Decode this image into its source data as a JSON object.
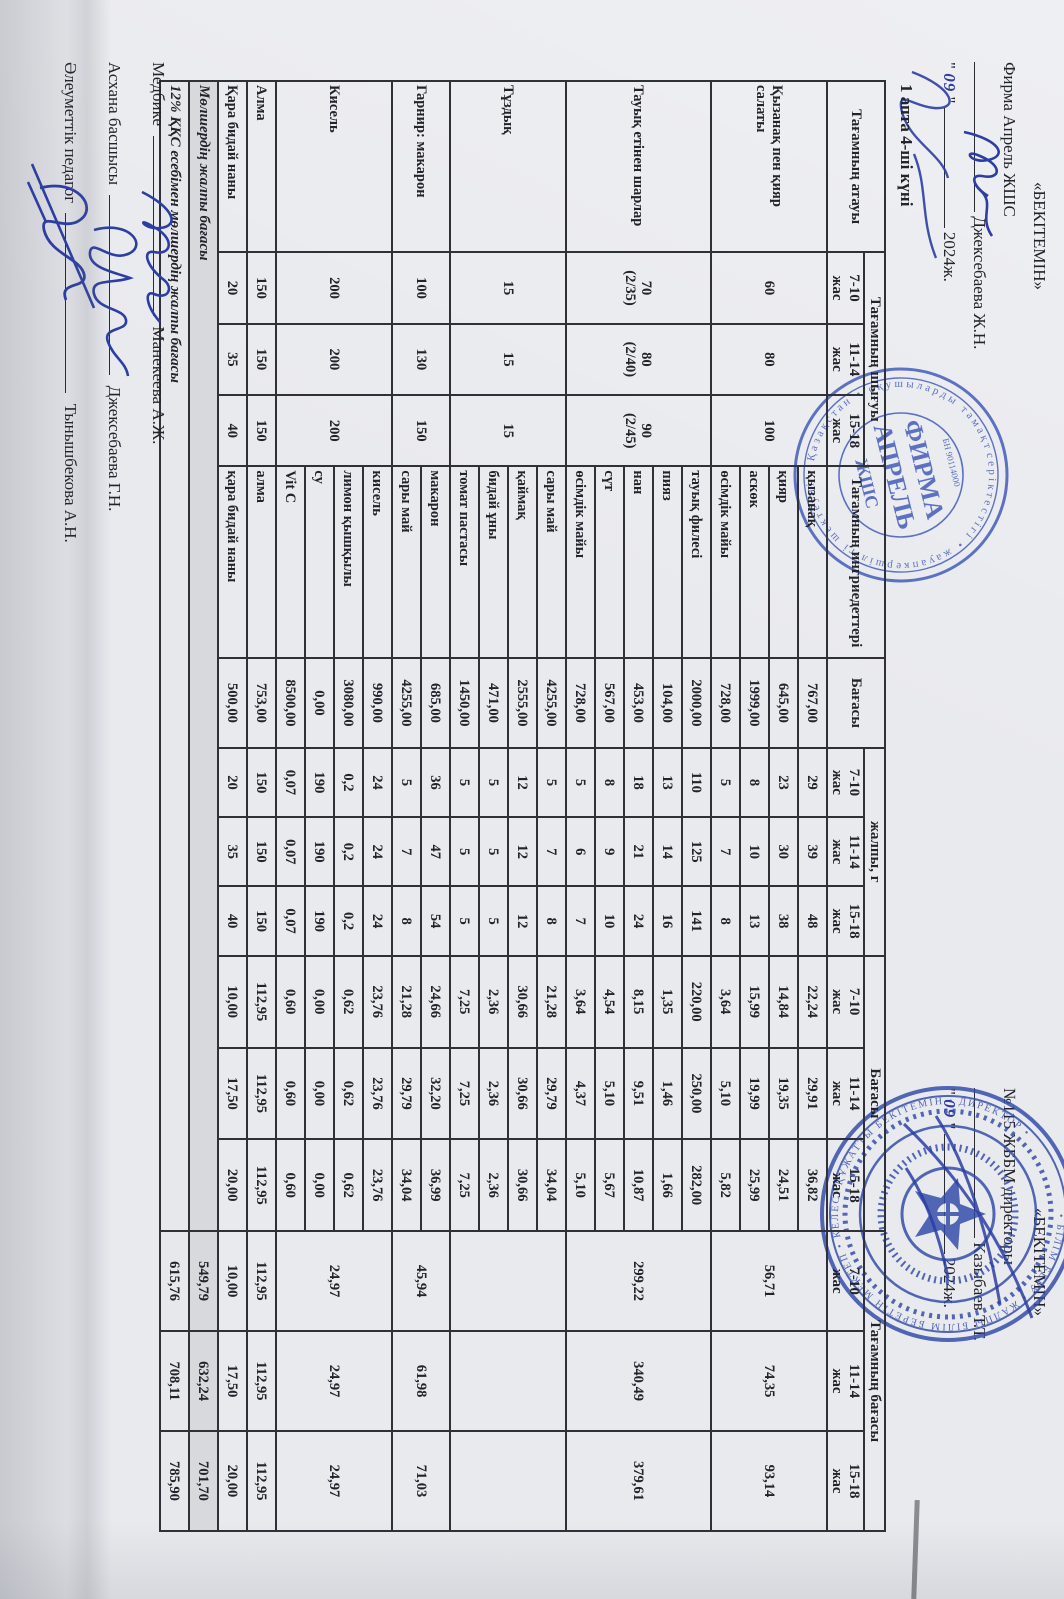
{
  "title": "1 апта 4-ші күні",
  "misc": {
    "dq": "\""
  },
  "header_left": {
    "approve": "«БЕКІТЕМІН»",
    "org": "Фирма Апрель ЖШС",
    "name": "Джексебаева Ж.Н.",
    "date_day": "09",
    "year": "2024ж.",
    "stamp_text": "ФИРМА АПРЕЛЬ ЖШС"
  },
  "header_right": {
    "approve": "«БЕКІТЕМІН»",
    "org": "№115 ЖББМ директоры",
    "name": "Казыбаев Т.Т.",
    "date_day": "09",
    "year": "2024ж."
  },
  "table": {
    "headers": {
      "name": "Тағамның атауы",
      "output_group": "Тағамның шығуы",
      "ingredients": "Тағамның ингриедеттері",
      "unit_price": "Бағасы",
      "grams_group": "жалпы, г",
      "price_group": "Бағасы",
      "dish_price_group": "Тағамның бағасы",
      "ages": [
        "7-10 жас",
        "11-14 жас",
        "15-18 жас"
      ]
    },
    "dishes": [
      {
        "name": "Қызанақ пен қияр салаты",
        "output": [
          [
            "60"
          ],
          [
            "80"
          ],
          [
            "100"
          ]
        ],
        "ingredients": [
          {
            "n": "қызанақ",
            "price": "767,00",
            "g": [
              "29",
              "39",
              "48"
            ],
            "p": [
              "22,24",
              "29,91",
              "36,82"
            ]
          },
          {
            "n": "қияр",
            "price": "645,00",
            "g": [
              "23",
              "30",
              "38"
            ],
            "p": [
              "14,84",
              "19,35",
              "24,51"
            ]
          },
          {
            "n": "аскөк",
            "price": "1999,00",
            "g": [
              "8",
              "10",
              "13"
            ],
            "p": [
              "15,99",
              "19,99",
              "25,99"
            ]
          },
          {
            "n": "өсімдік майы",
            "price": "728,00",
            "g": [
              "5",
              "7",
              "8"
            ],
            "p": [
              "3,64",
              "5,10",
              "5,82"
            ]
          }
        ],
        "totals": [
          "56,71",
          "74,35",
          "93,14"
        ]
      },
      {
        "name": "Тауық етінен шарлар",
        "output": [
          [
            "70",
            "(2/35)"
          ],
          [
            "80",
            "(2/40)"
          ],
          [
            "90",
            "(2/45)"
          ]
        ],
        "ingredients": [
          {
            "n": "тауық филесі",
            "price": "2000,00",
            "g": [
              "110",
              "125",
              "141"
            ],
            "p": [
              "220,00",
              "250,00",
              "282,00"
            ]
          },
          {
            "n": "пияз",
            "price": "104,00",
            "g": [
              "13",
              "14",
              "16"
            ],
            "p": [
              "1,35",
              "1,46",
              "1,66"
            ]
          },
          {
            "n": "нан",
            "price": "453,00",
            "g": [
              "18",
              "21",
              "24"
            ],
            "p": [
              "8,15",
              "9,51",
              "10,87"
            ]
          },
          {
            "n": "сүт",
            "price": "567,00",
            "g": [
              "8",
              "9",
              "10"
            ],
            "p": [
              "4,54",
              "5,10",
              "5,67"
            ]
          },
          {
            "n": "өсімдік майы",
            "price": "728,00",
            "g": [
              "5",
              "6",
              "7"
            ],
            "p": [
              "3,64",
              "4,37",
              "5,10"
            ]
          }
        ],
        "totals": [
          "299,22",
          "340,49",
          "379,61"
        ]
      },
      {
        "name": "Тұздық",
        "output": [
          [
            "15"
          ],
          [
            "15"
          ],
          [
            "15"
          ]
        ],
        "ingredients": [
          {
            "n": "сары май",
            "price": "4255,00",
            "g": [
              "5",
              "7",
              "8"
            ],
            "p": [
              "21,28",
              "29,79",
              "34,04"
            ]
          },
          {
            "n": "қаймақ",
            "price": "2555,00",
            "g": [
              "12",
              "12",
              "12"
            ],
            "p": [
              "30,66",
              "30,66",
              "30,66"
            ]
          },
          {
            "n": "бидай ұны",
            "price": "471,00",
            "g": [
              "5",
              "5",
              "5"
            ],
            "p": [
              "2,36",
              "2,36",
              "2,36"
            ]
          },
          {
            "n": "томат пастасы",
            "price": "1450,00",
            "g": [
              "5",
              "5",
              "5"
            ],
            "p": [
              "7,25",
              "7,25",
              "7,25"
            ]
          }
        ],
        "totals": [
          "",
          "",
          ""
        ]
      },
      {
        "name": "Гарнир: макарон",
        "output": [
          [
            "100"
          ],
          [
            "130"
          ],
          [
            "150"
          ]
        ],
        "ingredients": [
          {
            "n": "макарон",
            "price": "685,00",
            "g": [
              "36",
              "47",
              "54"
            ],
            "p": [
              "24,66",
              "32,20",
              "36,99"
            ]
          },
          {
            "n": "сары май",
            "price": "4255,00",
            "g": [
              "5",
              "7",
              "8"
            ],
            "p": [
              "21,28",
              "29,79",
              "34,04"
            ]
          }
        ],
        "totals": [
          "45,94",
          "61,98",
          "71,03"
        ]
      },
      {
        "name": "Кисель",
        "output": [
          [
            "200"
          ],
          [
            "200"
          ],
          [
            "200"
          ]
        ],
        "ingredients": [
          {
            "n": "кисель",
            "price": "990,00",
            "g": [
              "24",
              "24",
              "24"
            ],
            "p": [
              "23,76",
              "23,76",
              "23,76"
            ]
          },
          {
            "n": "лимон қышқылы",
            "price": "3080,00",
            "g": [
              "0,2",
              "0,2",
              "0,2"
            ],
            "p": [
              "0,62",
              "0,62",
              "0,62"
            ]
          },
          {
            "n": "су",
            "price": "0,00",
            "g": [
              "190",
              "190",
              "190"
            ],
            "p": [
              "0,00",
              "0,00",
              "0,00"
            ]
          },
          {
            "n": "Vit C",
            "price": "8500,00",
            "g": [
              "0,07",
              "0,07",
              "0,07"
            ],
            "p": [
              "0,60",
              "0,60",
              "0,60"
            ]
          }
        ],
        "totals": [
          "24,97",
          "24,97",
          "24,97"
        ]
      },
      {
        "name": "Алма",
        "output": [
          [
            "150"
          ],
          [
            "150"
          ],
          [
            "150"
          ]
        ],
        "ingredients": [
          {
            "n": "алма",
            "price": "753,00",
            "g": [
              "150",
              "150",
              "150"
            ],
            "p": [
              "112,95",
              "112,95",
              "112,95"
            ]
          }
        ],
        "totals": [
          "112,95",
          "112,95",
          "112,95"
        ]
      },
      {
        "name": "Қара бидай наны",
        "output": [
          [
            "20"
          ],
          [
            "35"
          ],
          [
            "40"
          ]
        ],
        "ingredients": [
          {
            "n": "қара бидай наны",
            "price": "500,00",
            "g": [
              "20",
              "35",
              "40"
            ],
            "p": [
              "10,00",
              "17,50",
              "20,00"
            ]
          }
        ],
        "totals": [
          "10,00",
          "17,50",
          "20,00"
        ]
      }
    ],
    "totals_rows": [
      {
        "label": "Мөлшердің жалпы бағасы",
        "values": [
          "549,79",
          "632,24",
          "701,70"
        ],
        "shaded": true
      },
      {
        "label": "12%  ҚҚС есебімен мөлшердің жалпы бағасы",
        "values": [
          "615,76",
          "708,11",
          "785,90"
        ],
        "shaded": false
      }
    ]
  },
  "signatures": [
    {
      "role": "Медбике",
      "name": "Манекеева А.Ж."
    },
    {
      "role": "Асхана басшысы",
      "name": "Джексебаева Г.Н."
    },
    {
      "role": "Әлеуметтік педагог",
      "name": "Тынышбекова А.Н."
    }
  ]
}
